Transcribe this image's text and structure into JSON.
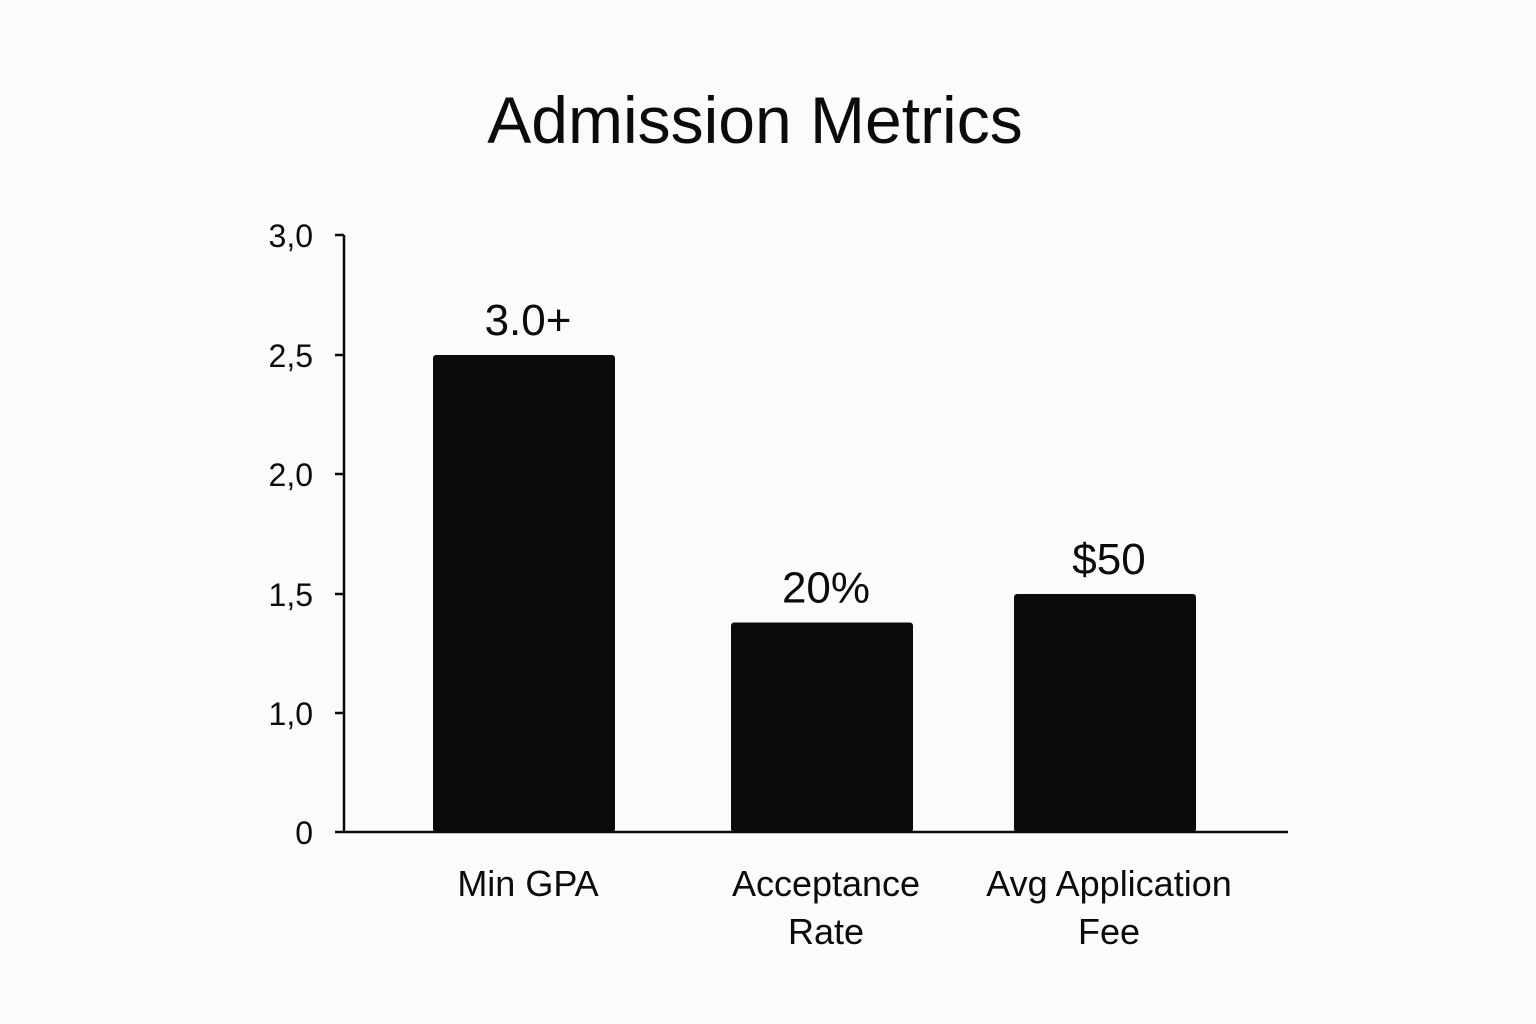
{
  "chart_data": {
    "type": "bar",
    "title": "Admission Metrics",
    "xlabel": "",
    "ylabel": "",
    "ylim": [
      0,
      3.0
    ],
    "y_ticks": [
      {
        "value": 0,
        "label": "0"
      },
      {
        "value": 1.0,
        "label": "1,0"
      },
      {
        "value": 1.5,
        "label": "1,5"
      },
      {
        "value": 2.0,
        "label": "2,0"
      },
      {
        "value": 2.5,
        "label": "2,5"
      },
      {
        "value": 3.0,
        "label": "3,0"
      }
    ],
    "categories": [
      [
        "Min GPA"
      ],
      [
        "Acceptance",
        "Rate"
      ],
      [
        "Avg Application",
        "Fee"
      ]
    ],
    "values": [
      2.5,
      1.38,
      1.5
    ],
    "data_labels": [
      "3.0+",
      "20%",
      "$50"
    ],
    "bar_color": "#0b0b0b",
    "grid": false,
    "legend": "none"
  }
}
